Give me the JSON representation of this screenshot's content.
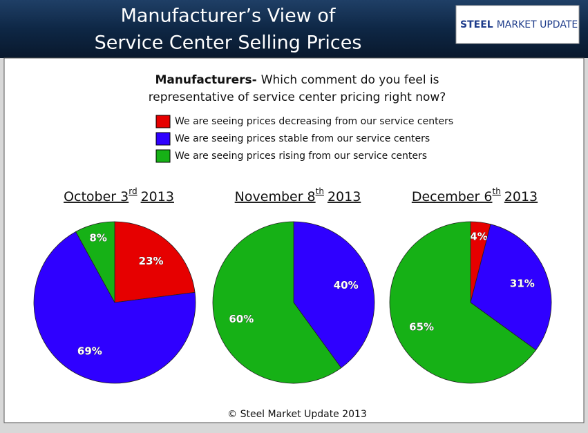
{
  "header": {
    "title_lines": [
      "Manufacturer’s View of",
      "Service Center Selling Prices"
    ],
    "logo": [
      "STEEL",
      "MARKET UPDATE"
    ]
  },
  "question": {
    "bold": "Manufacturers-",
    "line1": "Which comment do you feel is",
    "line2": "representative of service center pricing right now?"
  },
  "legend": {
    "labels": [
      "We are seeing prices decreasing from our service centers",
      "We are seeing prices stable from our service centers",
      "We are seeing prices rising from our service centers"
    ],
    "colors": [
      "#e60000",
      "#2f00ff",
      "#16b116"
    ]
  },
  "chart_data": [
    {
      "type": "pie",
      "title": [
        "October 3",
        "rd",
        "2013"
      ],
      "values": [
        23,
        69,
        8
      ],
      "value_labels": [
        "23%",
        "69%",
        "8%"
      ]
    },
    {
      "type": "pie",
      "title": [
        "November 8",
        "th",
        "2013"
      ],
      "values": [
        0,
        40,
        60
      ],
      "value_labels": [
        null,
        "40%",
        "60%"
      ]
    },
    {
      "type": "pie",
      "title": [
        "December 6",
        "th",
        "2013"
      ],
      "values": [
        4,
        31,
        65
      ],
      "value_labels": [
        "4%",
        "31%",
        "65%"
      ]
    }
  ],
  "footer": "© Steel Market Update 2013"
}
